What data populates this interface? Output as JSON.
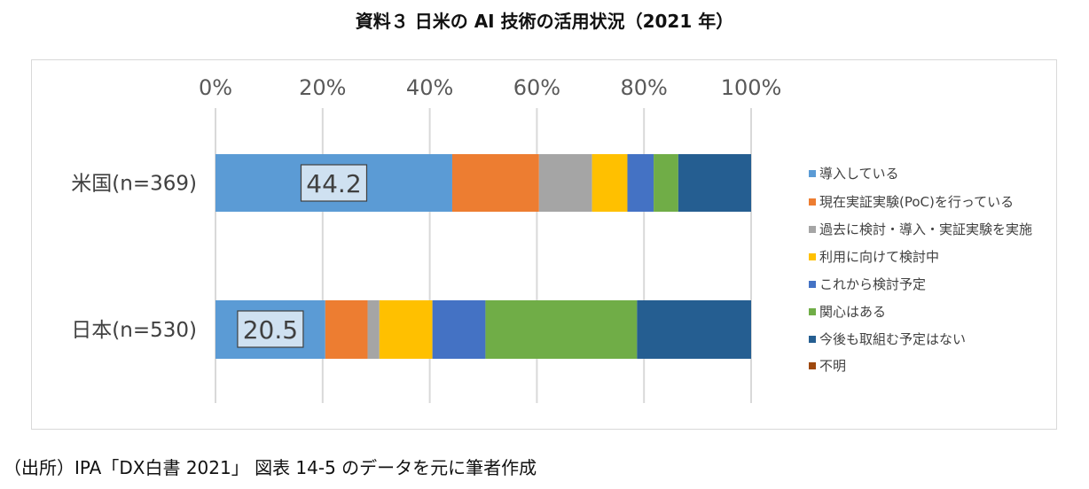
{
  "title": "資料３ 日米の AI 技術の活用状況（2021 年）",
  "source": "（出所）IPA「DX白書 2021」 図表 14-5 のデータを元に筆者作成",
  "chart_data": {
    "type": "bar",
    "orientation": "horizontal-stacked-100",
    "xlim": [
      0,
      100
    ],
    "ticks": [
      "0%",
      "20%",
      "40%",
      "60%",
      "80%",
      "100%"
    ],
    "tick_values": [
      0,
      20,
      40,
      60,
      80,
      100
    ],
    "grid": true,
    "legend_position": "right",
    "categories": [
      "米国(n=369)",
      "日本(n=530)"
    ],
    "series": [
      {
        "name": "導入している",
        "color": "#5b9bd5",
        "values": [
          44.2,
          20.5
        ]
      },
      {
        "name": "現在実証実験(PoC)を行っている",
        "color": "#ed7d31",
        "values": [
          16.2,
          7.9
        ]
      },
      {
        "name": "過去に検討・導入・実証実験を実施",
        "color": "#a5a5a5",
        "values": [
          9.9,
          2.2
        ]
      },
      {
        "name": "利用に向けて検討中",
        "color": "#ffc000",
        "values": [
          6.6,
          9.9
        ]
      },
      {
        "name": "これから検討予定",
        "color": "#4472c4",
        "values": [
          4.9,
          9.9
        ]
      },
      {
        "name": "関心はある",
        "color": "#70ad47",
        "values": [
          4.6,
          28.3
        ]
      },
      {
        "name": "今後も取組む予定はない",
        "color": "#255e91",
        "values": [
          13.6,
          21.3
        ]
      },
      {
        "name": "不明",
        "color": "#9e480e",
        "values": [
          0,
          0
        ]
      }
    ],
    "data_labels": [
      "44.2",
      "20.5"
    ]
  }
}
